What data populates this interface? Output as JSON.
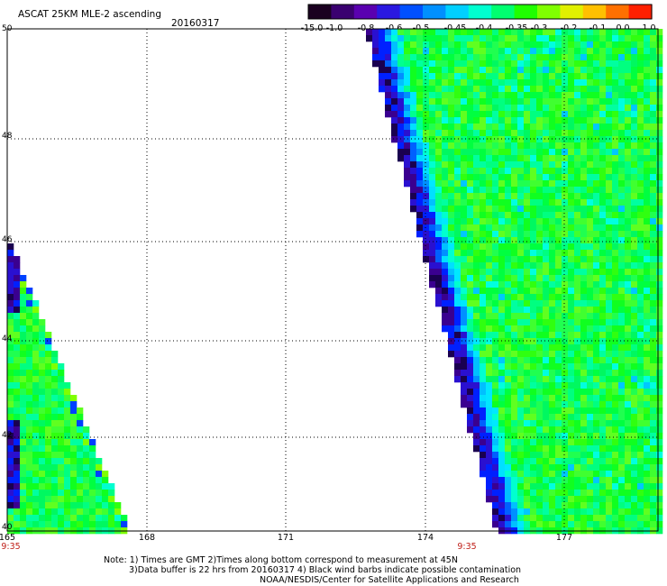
{
  "header": {
    "title": "ASCAT 25KM MLE-2 ascending",
    "date": "20160317"
  },
  "colorbar": {
    "labels": [
      "-15.0",
      "-1.0",
      "-0.8",
      "-0.6",
      "-0.5",
      "-0.45",
      "-0.4",
      "-0.35",
      "-0.3",
      "-0.2",
      "-0.1",
      "0.0",
      "1.0"
    ],
    "colors": [
      "#1a0020",
      "#3a0070",
      "#5a00b0",
      "#2a18e0",
      "#0050ff",
      "#0090ff",
      "#00d0ff",
      "#00ffd0",
      "#00ff70",
      "#20ff00",
      "#80ff00",
      "#e0f000",
      "#ffc000",
      "#ff7000",
      "#ff2000"
    ]
  },
  "map": {
    "lat_labels": [
      "50",
      "48",
      "46",
      "44",
      "42",
      "40"
    ],
    "lon_labels": [
      "165",
      "168",
      "171",
      "174",
      "177"
    ],
    "time_labels": [
      "9:35",
      "9:35"
    ]
  },
  "notes": {
    "line1": "Note: 1) Times are GMT 2)Times along bottom correspond to measurement at 45N",
    "line2": "3)Data buffer is 22 hrs from 20160317 4) Black wind barbs indicate possible contamination",
    "line3": "NOAA/NESDIS/Center for Satellite Applications and Research"
  }
}
